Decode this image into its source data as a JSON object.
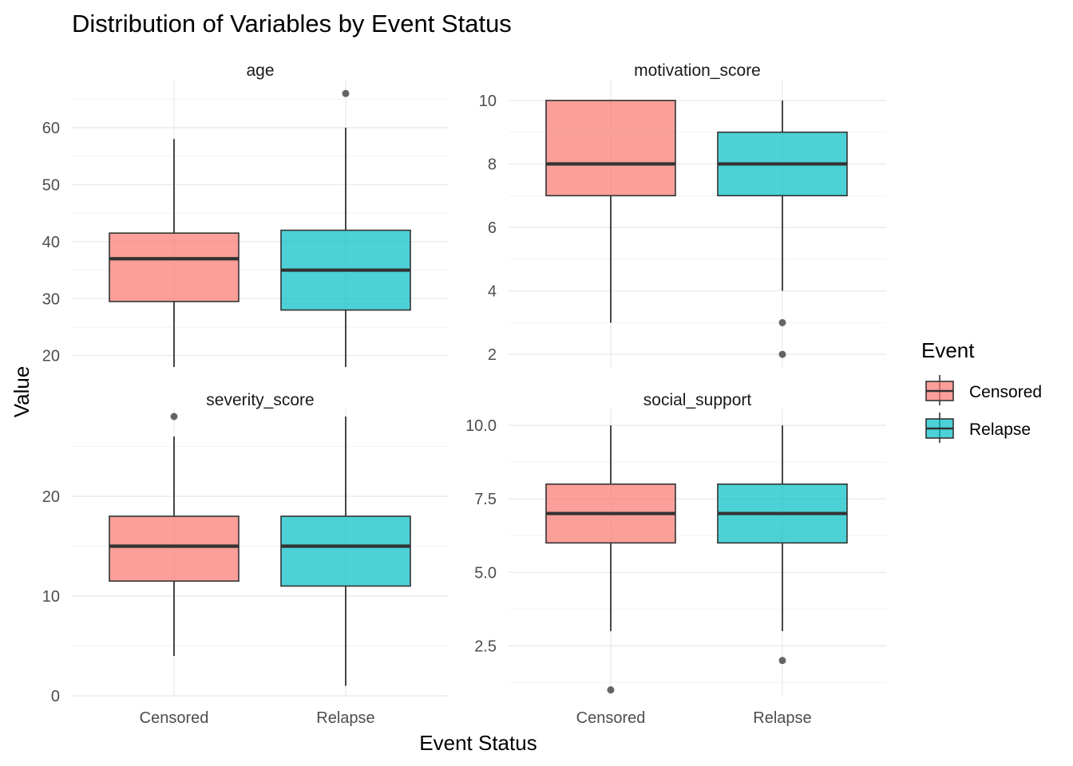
{
  "chart_data": {
    "type": "boxplot",
    "title": "Distribution of Variables by Event Status",
    "xlabel": "Event Status",
    "ylabel": "Value",
    "categories": [
      "Censored",
      "Relapse"
    ],
    "legend": {
      "title": "Event",
      "position": "right",
      "entries": [
        {
          "label": "Censored",
          "color": "#F8766D"
        },
        {
          "label": "Relapse",
          "color": "#00BFC4"
        }
      ]
    },
    "fill_alpha": 0.7,
    "grid": true,
    "facets": [
      {
        "name": "age",
        "ylim": [
          18,
          67
        ],
        "yticks": [
          20,
          30,
          40,
          50,
          60
        ],
        "tick_labels": [
          "20",
          "30",
          "40",
          "50",
          "60"
        ],
        "boxes": [
          {
            "group": "Censored",
            "min": 18,
            "q1": 29.5,
            "median": 37,
            "q3": 41.5,
            "max": 58,
            "outliers": []
          },
          {
            "group": "Relapse",
            "min": 18,
            "q1": 28,
            "median": 35,
            "q3": 42,
            "max": 60,
            "outliers": [
              66
            ]
          }
        ]
      },
      {
        "name": "motivation_score",
        "ylim": [
          1.6,
          10.4
        ],
        "yticks": [
          2,
          4,
          6,
          8,
          10
        ],
        "tick_labels": [
          "2",
          "4",
          "6",
          "8",
          "10"
        ],
        "boxes": [
          {
            "group": "Censored",
            "min": 3,
            "q1": 7,
            "median": 8,
            "q3": 10,
            "max": 10,
            "outliers": []
          },
          {
            "group": "Relapse",
            "min": 4,
            "q1": 7,
            "median": 8,
            "q3": 9,
            "max": 10,
            "outliers": [
              3,
              2
            ]
          }
        ]
      },
      {
        "name": "severity_score",
        "ylim": [
          0,
          28
        ],
        "yticks": [
          0,
          10,
          20
        ],
        "tick_labels": [
          "0",
          "10",
          "20"
        ],
        "boxes": [
          {
            "group": "Censored",
            "min": 4,
            "q1": 11.5,
            "median": 15,
            "q3": 18,
            "max": 26,
            "outliers": [
              28
            ]
          },
          {
            "group": "Relapse",
            "min": 1,
            "q1": 11,
            "median": 15,
            "q3": 18,
            "max": 28,
            "outliers": []
          }
        ]
      },
      {
        "name": "social_support",
        "ylim": [
          0.8,
          10.3
        ],
        "yticks": [
          2.5,
          5.0,
          7.5,
          10.0
        ],
        "tick_labels": [
          "2.5",
          "5.0",
          "7.5",
          "10.0"
        ],
        "boxes": [
          {
            "group": "Censored",
            "min": 3,
            "q1": 6,
            "median": 7,
            "q3": 8,
            "max": 10,
            "outliers": [
              1
            ]
          },
          {
            "group": "Relapse",
            "min": 3,
            "q1": 6,
            "median": 7,
            "q3": 8,
            "max": 10,
            "outliers": [
              2
            ]
          }
        ]
      }
    ]
  }
}
